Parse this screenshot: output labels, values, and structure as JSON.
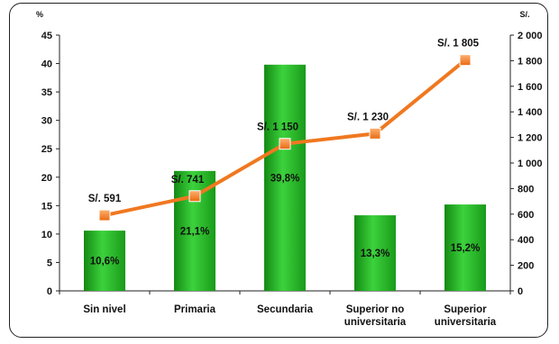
{
  "chart_data": {
    "type": "bar",
    "categories": [
      [
        "Sin nivel"
      ],
      [
        "Primaria"
      ],
      [
        "Secundaria"
      ],
      [
        "Superior no",
        "universitaria"
      ],
      [
        "Superior",
        "universitaria"
      ]
    ],
    "series": [
      {
        "type": "bar",
        "axis": "left",
        "values": [
          10.6,
          21.1,
          39.8,
          13.3,
          15.2
        ],
        "labels": [
          "10,6%",
          "21,1%",
          "39,8%",
          "13,3%",
          "15,2%"
        ],
        "color": "#22aa22"
      },
      {
        "type": "line",
        "axis": "right",
        "values": [
          591,
          741,
          1150,
          1230,
          1805
        ],
        "labels": [
          "S/. 591",
          "S/. 741",
          "S/. 1 150",
          "S/. 1 230",
          "S/. 1 805"
        ],
        "color": "#f07820",
        "marker_color": "#f08a30"
      }
    ],
    "y_left": {
      "unit": "%",
      "ylim": [
        0,
        45
      ],
      "ticks": [
        "0",
        "5",
        "10",
        "15",
        "20",
        "25",
        "30",
        "35",
        "40",
        "45"
      ]
    },
    "y_right": {
      "unit": "S/.",
      "ylim": [
        0,
        2000
      ],
      "ticks": [
        "0",
        "200",
        "400",
        "600",
        "800",
        "1 000",
        "1 200",
        "1 400",
        "1 600",
        "1 800",
        "2 000"
      ]
    },
    "grid": false,
    "legend": "none"
  }
}
